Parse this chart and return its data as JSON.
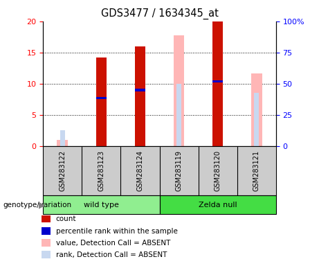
{
  "title": "GDS3477 / 1634345_at",
  "samples": [
    "GSM283122",
    "GSM283123",
    "GSM283124",
    "GSM283119",
    "GSM283120",
    "GSM283121"
  ],
  "ylim_left": [
    0,
    20
  ],
  "ylim_right": [
    0,
    100
  ],
  "yticks_left": [
    0,
    5,
    10,
    15,
    20
  ],
  "yticks_right": [
    0,
    25,
    50,
    75,
    100
  ],
  "ytick_labels_right": [
    "0",
    "25",
    "50",
    "75",
    "100%"
  ],
  "count": [
    null,
    14.2,
    16.0,
    null,
    20.0,
    null
  ],
  "percentile_rank": [
    null,
    7.7,
    9.0,
    null,
    10.4,
    null
  ],
  "value_absent": [
    1.0,
    null,
    null,
    17.8,
    null,
    11.7
  ],
  "rank_absent": [
    2.6,
    null,
    null,
    10.0,
    null,
    8.5
  ],
  "color_count": "#CC1100",
  "color_percentile": "#0000CC",
  "color_value_absent": "#FFB6B6",
  "color_rank_absent": "#C8D8F0",
  "group_wt_color": "#90EE90",
  "group_null_color": "#44DD44",
  "sample_bg": "#cccccc",
  "legend_items": [
    [
      "#CC1100",
      "count"
    ],
    [
      "#0000CC",
      "percentile rank within the sample"
    ],
    [
      "#FFB6B6",
      "value, Detection Call = ABSENT"
    ],
    [
      "#C8D8F0",
      "rank, Detection Call = ABSENT"
    ]
  ]
}
